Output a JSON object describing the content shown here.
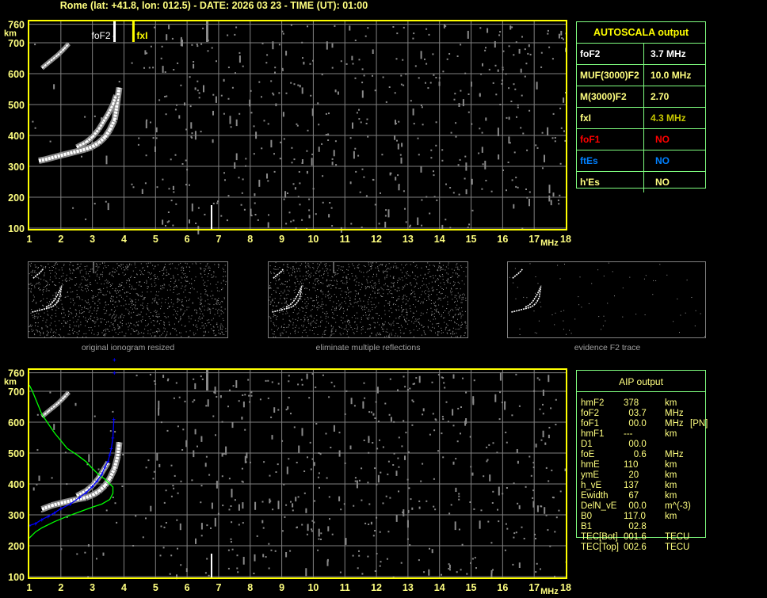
{
  "header": {
    "title": "Rome (lat: +41.8, lon: 012.5) - DATE: 2026 03 23 - TIME (UT): 01:00"
  },
  "colors": {
    "axis": "#ffff00",
    "label": "#ffff80",
    "grid": "#808080",
    "table_border": "#80ff80",
    "trace": "#ffffff",
    "profile": "#00ff00",
    "true_height": "#0000ff"
  },
  "autoscala": {
    "title": "AUTOSCALA output",
    "rows": [
      {
        "key": "foF2",
        "value": "3.7 MHz",
        "color": "#ffffff",
        "value_color": "#ffffff"
      },
      {
        "key": "MUF(3000)F2",
        "value": "10.0 MHz",
        "color": "#ffff80",
        "value_color": "#ffff80"
      },
      {
        "key": "M(3000)F2",
        "value": "2.70",
        "color": "#ffff80",
        "value_color": "#ffff80"
      },
      {
        "key": "fxI",
        "value": "4.3 MHz",
        "color": "#ffff80",
        "value_color": "#c8c800"
      },
      {
        "key": "foF1",
        "value": "NO",
        "color": "#ff0000",
        "value_color": "#ff0000"
      },
      {
        "key": "ftEs",
        "value": "NO",
        "color": "#0080ff",
        "value_color": "#0080ff"
      },
      {
        "key": "h'Es",
        "value": "NO",
        "color": "#ffff80",
        "value_color": "#ffff80"
      }
    ]
  },
  "aip": {
    "title": "AIP output",
    "rows": [
      {
        "name": "hmF2",
        "value": "378",
        "unit": "km",
        "note": ""
      },
      {
        "name": "foF2",
        "value": "  03.7",
        "unit": "MHz",
        "note": ""
      },
      {
        "name": "foF1",
        "value": "  00.0",
        "unit": "MHz",
        "note": "[PN]"
      },
      {
        "name": "hmF1",
        "value": "---",
        "unit": "km",
        "note": ""
      },
      {
        "name": "D1",
        "value": "  00.0",
        "unit": "",
        "note": ""
      },
      {
        "name": "foE",
        "value": "    0.6",
        "unit": "MHz",
        "note": ""
      },
      {
        "name": "hmE",
        "value": "110",
        "unit": "km",
        "note": ""
      },
      {
        "name": "ymE",
        "value": "  20",
        "unit": "km",
        "note": ""
      },
      {
        "name": "h_vE",
        "value": "137",
        "unit": "km",
        "note": ""
      },
      {
        "name": "Ewidth",
        "value": "  67",
        "unit": "km",
        "note": ""
      },
      {
        "name": "DelN_vE",
        "value": "  00.0",
        "unit": "m^(-3)",
        "note": ""
      },
      {
        "name": "B0",
        "value": "117.0",
        "unit": "km",
        "note": ""
      },
      {
        "name": "B1",
        "value": "  02.8",
        "unit": "",
        "note": ""
      },
      {
        "name": "TEC[Bot]",
        "value": "001.6",
        "unit": "TECU",
        "note": ""
      },
      {
        "name": "TEC[Top]",
        "value": "002.6",
        "unit": "TECU",
        "note": ""
      }
    ]
  },
  "thumbnails": [
    {
      "label": "original ionogram resized"
    },
    {
      "label": "eliminate multiple reflections"
    },
    {
      "label": "evidence F2 trace"
    }
  ],
  "chart_data": [
    {
      "type": "scatter",
      "title": "",
      "xlabel": "MHz",
      "ylabel": "km",
      "xlim": [
        1,
        18
      ],
      "ylim": [
        100,
        760
      ],
      "xticks": [
        "1",
        "2",
        "3",
        "4",
        "5",
        "6",
        "7",
        "8",
        "9",
        "10",
        "11",
        "12",
        "13",
        "14",
        "15",
        "16",
        "17",
        "18"
      ],
      "yticks": [
        "100",
        "200",
        "300",
        "400",
        "500",
        "600",
        "700",
        "760"
      ],
      "grid": true,
      "markers": [
        {
          "label": "foF2",
          "freq": 3.7,
          "color": "#ffffff"
        },
        {
          "label": "fxI",
          "freq": 4.3,
          "color": "#ffff00"
        }
      ],
      "traces": {
        "o_trace": [
          [
            1.3,
            318
          ],
          [
            1.5,
            322
          ],
          [
            1.8,
            330
          ],
          [
            2.1,
            338
          ],
          [
            2.5,
            348
          ],
          [
            2.8,
            356
          ],
          [
            3.0,
            364
          ],
          [
            3.2,
            376
          ],
          [
            3.4,
            395
          ],
          [
            3.55,
            418
          ],
          [
            3.7,
            450
          ],
          [
            3.75,
            480
          ],
          [
            3.8,
            520
          ],
          [
            3.85,
            555
          ]
        ],
        "x_trace": [
          [
            2.5,
            362
          ],
          [
            2.8,
            378
          ],
          [
            3.0,
            395
          ],
          [
            3.2,
            420
          ],
          [
            3.35,
            445
          ],
          [
            3.5,
            470
          ],
          [
            3.65,
            500
          ],
          [
            3.75,
            530
          ]
        ],
        "multiple_echo": [
          [
            1.4,
            618
          ],
          [
            1.6,
            635
          ],
          [
            1.9,
            660
          ],
          [
            2.1,
            680
          ],
          [
            2.25,
            697
          ]
        ]
      }
    },
    {
      "type": "line",
      "title": "",
      "xlabel": "MHz",
      "ylabel": "km",
      "xlim": [
        1,
        18
      ],
      "ylim": [
        100,
        760
      ],
      "xticks": [
        "1",
        "2",
        "3",
        "4",
        "5",
        "6",
        "7",
        "8",
        "9",
        "10",
        "11",
        "12",
        "13",
        "14",
        "15",
        "16",
        "17",
        "18"
      ],
      "yticks": [
        "100",
        "200",
        "300",
        "400",
        "500",
        "600",
        "700",
        "760"
      ],
      "grid": true,
      "series": [
        {
          "color": "#00ff00",
          "points": [
            [
              1.0,
              720
            ],
            [
              1.1,
              700
            ],
            [
              1.2,
              675
            ],
            [
              1.4,
              625
            ],
            [
              1.6,
              595
            ],
            [
              1.8,
              565
            ],
            [
              2.0,
              540
            ],
            [
              2.2,
              515
            ],
            [
              2.5,
              495
            ],
            [
              2.8,
              472
            ],
            [
              3.0,
              450
            ],
            [
              3.2,
              430
            ],
            [
              3.4,
              415
            ],
            [
              3.55,
              400
            ],
            [
              3.65,
              390
            ],
            [
              3.65,
              370
            ],
            [
              3.55,
              350
            ],
            [
              3.3,
              335
            ],
            [
              3.0,
              325
            ],
            [
              2.6,
              310
            ],
            [
              2.2,
              295
            ],
            [
              1.8,
              278
            ],
            [
              1.4,
              258
            ],
            [
              1.2,
              245
            ],
            [
              1.0,
              225
            ]
          ]
        },
        {
          "color": "#0000ff",
          "points": [
            [
              1.0,
              265
            ],
            [
              1.2,
              272
            ],
            [
              1.4,
              285
            ],
            [
              1.6,
              295
            ],
            [
              1.8,
              307
            ],
            [
              2.0,
              320
            ],
            [
              2.3,
              335
            ],
            [
              2.6,
              357
            ],
            [
              2.8,
              372
            ],
            [
              3.0,
              392
            ],
            [
              3.15,
              410
            ],
            [
              3.3,
              432
            ],
            [
              3.4,
              455
            ],
            [
              3.5,
              475
            ],
            [
              3.55,
              495
            ],
            [
              3.6,
              515
            ],
            [
              3.65,
              550
            ],
            [
              3.68,
              610
            ],
            [
              3.7,
              760
            ]
          ]
        }
      ],
      "traces": {
        "o_trace": [
          [
            1.4,
            318
          ],
          [
            1.7,
            330
          ],
          [
            2.0,
            338
          ],
          [
            2.5,
            350
          ],
          [
            2.8,
            356
          ],
          [
            3.0,
            364
          ],
          [
            3.2,
            376
          ],
          [
            3.4,
            395
          ],
          [
            3.55,
            418
          ],
          [
            3.7,
            450
          ],
          [
            3.8,
            490
          ],
          [
            3.85,
            535
          ]
        ],
        "x_trace": [
          [
            2.5,
            362
          ],
          [
            2.8,
            378
          ],
          [
            3.0,
            395
          ],
          [
            3.2,
            420
          ],
          [
            3.35,
            445
          ],
          [
            3.5,
            470
          ]
        ],
        "multiple_echo": [
          [
            1.4,
            618
          ],
          [
            1.6,
            635
          ],
          [
            1.9,
            660
          ],
          [
            2.1,
            680
          ],
          [
            2.25,
            697
          ]
        ]
      }
    }
  ]
}
